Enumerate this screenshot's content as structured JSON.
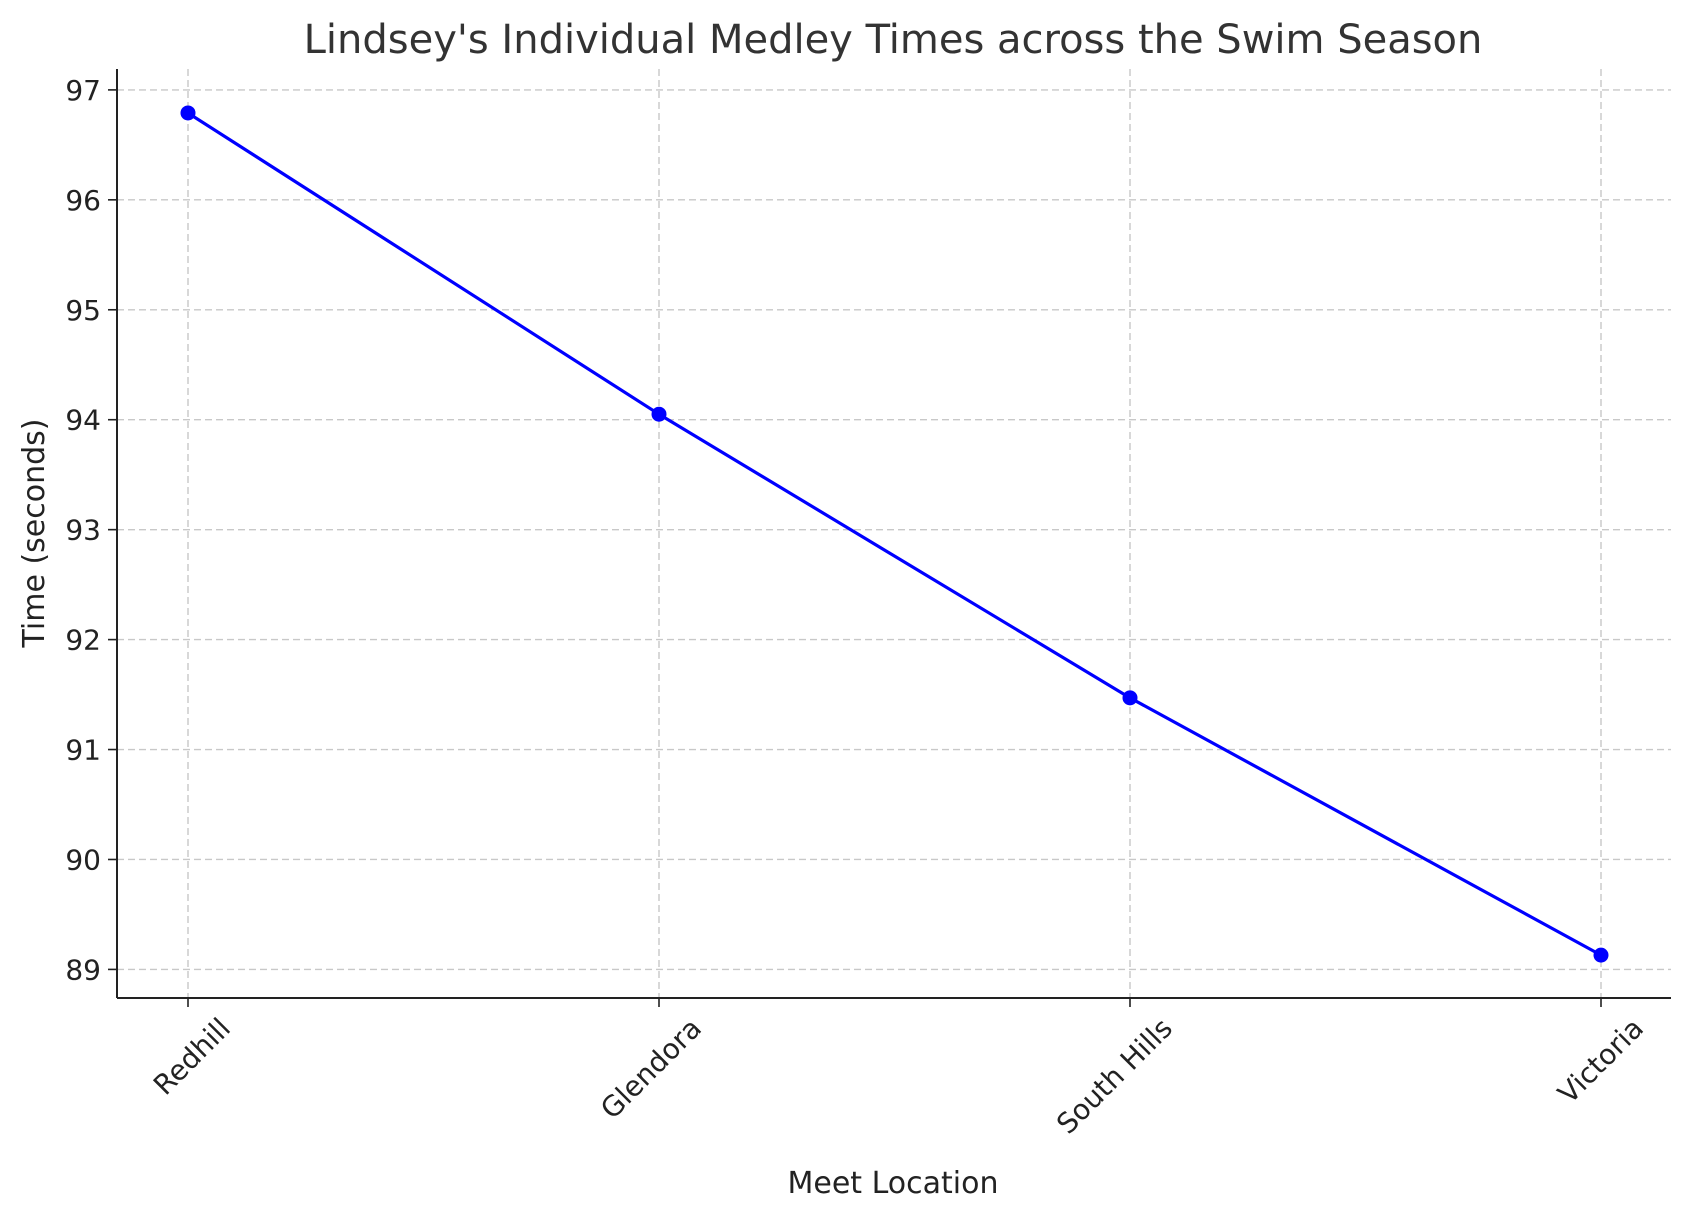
{
  "chart_data": {
    "type": "line",
    "title": "Lindsey's Individual Medley Times across the Swim Season",
    "xlabel": "Meet Location",
    "ylabel": "Time (seconds)",
    "categories": [
      "Redhill",
      "Glendora",
      "South Hills",
      "Victoria"
    ],
    "series": [
      {
        "values": [
          96.79,
          94.05,
          91.47,
          89.13
        ]
      }
    ],
    "ylim": [
      88.74,
      97.19
    ],
    "yticks": [
      89,
      90,
      91,
      92,
      93,
      94,
      95,
      96,
      97
    ],
    "grid": true,
    "colors": {
      "line": "#0000ff",
      "marker": "#0000ff",
      "grid": "#c8c8c8",
      "axis": "#222222"
    }
  }
}
